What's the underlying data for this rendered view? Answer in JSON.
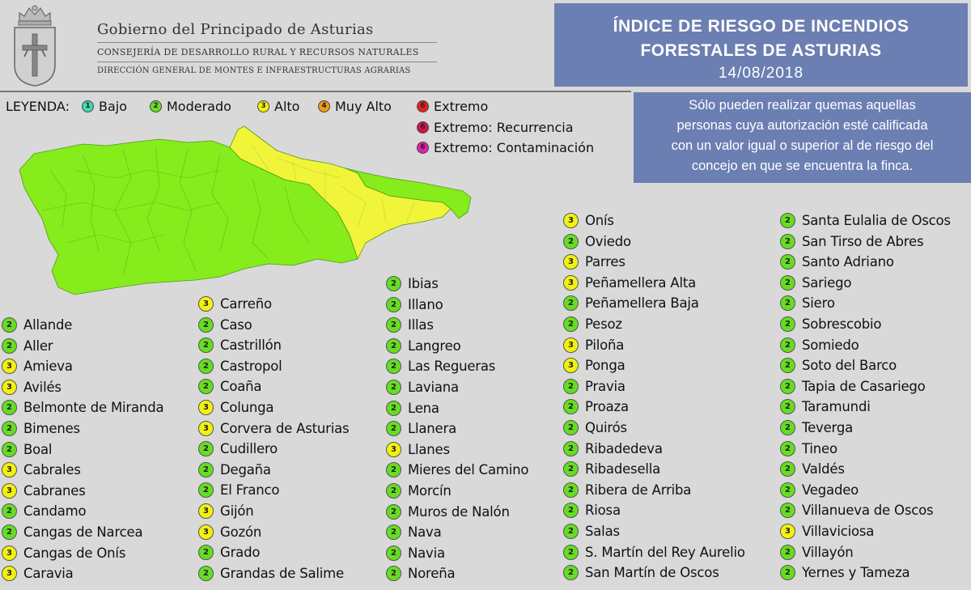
{
  "header": {
    "gov_title": "Gobierno del Principado de Asturias",
    "gov_sub1": "CONSEJERÍA DE DESARROLLO RURAL Y RECURSOS NATURALES",
    "gov_sub2": "DIRECCIÓN GENERAL DE MONTES E INFRAESTRUCTURAS AGRARIAS"
  },
  "title": {
    "line1": "ÍNDICE DE RIESGO DE INCENDIOS",
    "line2": "FORESTALES DE ASTURIAS",
    "date": "14/08/2018"
  },
  "notice": {
    "lines": [
      "Sólo pueden realizar quemas aquellas",
      "personas cuya autorización esté calificada",
      "con un valor igual o superior al de riesgo del",
      "concejo en que se encuentra la finca."
    ]
  },
  "legend": {
    "label": "LEYENDA:",
    "items": [
      {
        "num": "1",
        "label": "Bajo",
        "color": "#3fd9b0"
      },
      {
        "num": "2",
        "label": "Moderado",
        "color": "#66dd22"
      },
      {
        "num": "3",
        "label": "Alto",
        "color": "#f2f20c"
      },
      {
        "num": "4",
        "label": "Muy Alto",
        "color": "#f29a1a"
      },
      {
        "num": "6",
        "label": "Extremo",
        "color": "#e8201e"
      },
      {
        "num": "6",
        "label": "Extremo: Recurrencia",
        "color": "#d6124a"
      },
      {
        "num": "6",
        "label": "Extremo: Contaminación",
        "color": "#e61cae"
      }
    ]
  },
  "level_colors": {
    "2": "#66dd22",
    "3": "#f2f20c"
  },
  "columns": [
    [
      {
        "level": "2",
        "name": "Allande"
      },
      {
        "level": "2",
        "name": "Aller"
      },
      {
        "level": "3",
        "name": "Amieva"
      },
      {
        "level": "3",
        "name": "Avilés"
      },
      {
        "level": "2",
        "name": "Belmonte de Miranda"
      },
      {
        "level": "2",
        "name": "Bimenes"
      },
      {
        "level": "2",
        "name": "Boal"
      },
      {
        "level": "3",
        "name": "Cabrales"
      },
      {
        "level": "3",
        "name": "Cabranes"
      },
      {
        "level": "2",
        "name": "Candamo"
      },
      {
        "level": "2",
        "name": "Cangas de Narcea"
      },
      {
        "level": "3",
        "name": "Cangas de Onís"
      },
      {
        "level": "3",
        "name": "Caravia"
      }
    ],
    [
      {
        "level": "3",
        "name": "Carreño"
      },
      {
        "level": "2",
        "name": "Caso"
      },
      {
        "level": "2",
        "name": "Castrillón"
      },
      {
        "level": "2",
        "name": "Castropol"
      },
      {
        "level": "2",
        "name": "Coaña"
      },
      {
        "level": "3",
        "name": "Colunga"
      },
      {
        "level": "3",
        "name": "Corvera de Asturias"
      },
      {
        "level": "2",
        "name": "Cudillero"
      },
      {
        "level": "2",
        "name": "Degaña"
      },
      {
        "level": "2",
        "name": "El Franco"
      },
      {
        "level": "3",
        "name": "Gijón"
      },
      {
        "level": "3",
        "name": "Gozón"
      },
      {
        "level": "2",
        "name": "Grado"
      },
      {
        "level": "2",
        "name": "Grandas de Salime"
      }
    ],
    [
      {
        "level": "2",
        "name": "Ibias"
      },
      {
        "level": "2",
        "name": "Illano"
      },
      {
        "level": "2",
        "name": "Illas"
      },
      {
        "level": "2",
        "name": "Langreo"
      },
      {
        "level": "2",
        "name": "Las Regueras"
      },
      {
        "level": "2",
        "name": "Laviana"
      },
      {
        "level": "2",
        "name": "Lena"
      },
      {
        "level": "2",
        "name": "Llanera"
      },
      {
        "level": "3",
        "name": "Llanes"
      },
      {
        "level": "2",
        "name": "Mieres del Camino"
      },
      {
        "level": "2",
        "name": "Morcín"
      },
      {
        "level": "2",
        "name": "Muros de Nalón"
      },
      {
        "level": "2",
        "name": "Nava"
      },
      {
        "level": "2",
        "name": "Navia"
      },
      {
        "level": "2",
        "name": "Noreña"
      }
    ],
    [
      {
        "level": "3",
        "name": "Onís"
      },
      {
        "level": "2",
        "name": "Oviedo"
      },
      {
        "level": "3",
        "name": "Parres"
      },
      {
        "level": "3",
        "name": "Peñamellera Alta"
      },
      {
        "level": "2",
        "name": "Peñamellera Baja"
      },
      {
        "level": "2",
        "name": "Pesoz"
      },
      {
        "level": "3",
        "name": "Piloña"
      },
      {
        "level": "3",
        "name": "Ponga"
      },
      {
        "level": "2",
        "name": "Pravia"
      },
      {
        "level": "2",
        "name": "Proaza"
      },
      {
        "level": "2",
        "name": "Quirós"
      },
      {
        "level": "2",
        "name": "Ribadedeva"
      },
      {
        "level": "2",
        "name": "Ribadesella"
      },
      {
        "level": "2",
        "name": "Ribera de Arriba"
      },
      {
        "level": "2",
        "name": "Riosa"
      },
      {
        "level": "2",
        "name": "Salas"
      },
      {
        "level": "2",
        "name": "S. Martín del Rey Aurelio"
      },
      {
        "level": "2",
        "name": "San Martín de Oscos"
      }
    ],
    [
      {
        "level": "2",
        "name": "Santa Eulalia de Oscos"
      },
      {
        "level": "2",
        "name": "San Tirso de Abres"
      },
      {
        "level": "2",
        "name": "Santo Adriano"
      },
      {
        "level": "2",
        "name": "Sariego"
      },
      {
        "level": "2",
        "name": "Siero"
      },
      {
        "level": "2",
        "name": "Sobrescobio"
      },
      {
        "level": "2",
        "name": "Somiedo"
      },
      {
        "level": "2",
        "name": "Soto del Barco"
      },
      {
        "level": "2",
        "name": "Tapia de Casariego"
      },
      {
        "level": "2",
        "name": "Taramundi"
      },
      {
        "level": "2",
        "name": "Teverga"
      },
      {
        "level": "2",
        "name": "Tineo"
      },
      {
        "level": "2",
        "name": "Valdés"
      },
      {
        "level": "2",
        "name": "Vegadeo"
      },
      {
        "level": "2",
        "name": "Villanueva de Oscos"
      },
      {
        "level": "3",
        "name": "Villaviciosa"
      },
      {
        "level": "2",
        "name": "Villayón"
      },
      {
        "level": "2",
        "name": "Yernes y Tameza"
      }
    ]
  ]
}
